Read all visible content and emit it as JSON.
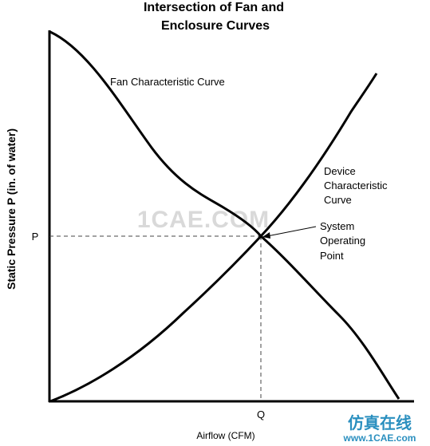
{
  "diagram": {
    "title_line1": "Intersection of Fan and",
    "title_line2": "Enclosure Curves",
    "y_axis_label": "Static Pressure P (in. of water)",
    "x_axis_label": "Airflow (CFM)",
    "y_tick": "P",
    "x_tick": "Q",
    "fan_curve_label": "Fan Characteristic Curve",
    "device_curve_label": [
      "Device",
      "Characteristic",
      "Curve"
    ],
    "operating_point_label": [
      "System",
      "Operating",
      "Point"
    ],
    "watermark": "1CAE.COM"
  },
  "footer": {
    "brand_cn": "仿真在线",
    "url": "www.1CAE.com"
  }
}
